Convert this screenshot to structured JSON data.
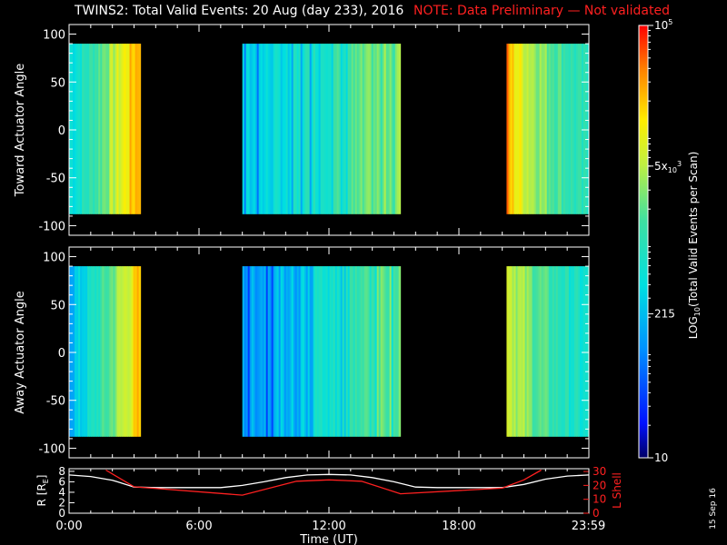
{
  "header": {
    "title": "TWINS2: Total Valid Events: 20 Aug (day 233), 2016",
    "note": "NOTE: Data Preliminary — Not validated"
  },
  "footer": {
    "date_stamp": "15 Sep 16"
  },
  "colors": {
    "background": "#000000",
    "axis": "#ffffff",
    "note": "#ff2020",
    "lshell": "#ff2020"
  },
  "chart_data": [
    {
      "type": "heatmap",
      "ylabel": "Toward Actuator Angle",
      "ylim": [
        -110,
        110
      ],
      "yticks": [
        100,
        50,
        0,
        -50,
        -100
      ],
      "xlim": [
        0,
        24
      ],
      "data_bands": [
        {
          "start_h": 0.0,
          "end_h": 3.3,
          "intensity_profile": "blue-green at start rising to orange at end"
        },
        {
          "start_h": 8.0,
          "end_h": 15.3,
          "intensity_profile": "blue/cyan streaks transitioning to yellow-green"
        },
        {
          "start_h": 20.2,
          "end_h": 24.0,
          "intensity_profile": "orange at start falling to cyan"
        }
      ],
      "angle_range": [
        -88,
        90
      ]
    },
    {
      "type": "heatmap",
      "ylabel": "Away Actuator Angle",
      "ylim": [
        -110,
        110
      ],
      "yticks": [
        100,
        50,
        0,
        -50,
        -100
      ],
      "xlim": [
        0,
        24
      ],
      "data_bands": [
        {
          "start_h": 0.0,
          "end_h": 3.3,
          "intensity_profile": "blue at start rising to yellow-orange at end"
        },
        {
          "start_h": 8.0,
          "end_h": 15.3,
          "intensity_profile": "blue/cyan streaks transitioning to yellow-green"
        },
        {
          "start_h": 20.2,
          "end_h": 24.0,
          "intensity_profile": "yellow-orange at start falling to cyan"
        }
      ],
      "angle_range": [
        -88,
        90
      ]
    },
    {
      "type": "line",
      "xlabel": "Time (UT)",
      "xticks": [
        "0:00",
        "6:00",
        "12:00",
        "18:00",
        "23:59"
      ],
      "xtick_hours": [
        0,
        6,
        12,
        18,
        23.98
      ],
      "ylabel_left": "R [Rₑ]",
      "ylabel_left_parts": {
        "main": "R [R",
        "sub": "E",
        "close": "]"
      },
      "ylim_left": [
        0,
        8.5
      ],
      "yticks_left": [
        "8",
        "6",
        "4",
        "2",
        "0"
      ],
      "ylabel_right": "L Shell",
      "ylim_right": [
        0,
        32
      ],
      "yticks_right": [
        "30",
        "20",
        "10",
        "0"
      ],
      "series": [
        {
          "color": "#ffffff",
          "x": [
            0,
            1,
            2,
            3,
            4,
            5,
            6,
            7,
            8,
            9,
            10,
            11,
            12,
            13,
            14,
            15,
            16,
            17,
            18,
            19,
            20,
            21,
            22,
            23,
            24
          ],
          "y": [
            7.3,
            7.0,
            6.3,
            5.0,
            4.9,
            4.9,
            4.9,
            4.9,
            5.3,
            6.0,
            6.8,
            7.3,
            7.4,
            7.3,
            6.8,
            6.0,
            5.0,
            4.9,
            4.9,
            4.9,
            4.9,
            5.5,
            6.5,
            7.1,
            7.3
          ]
        },
        {
          "color": "#ff2020",
          "axis": "right",
          "x": [
            1.7,
            3.0,
            8.0,
            10.5,
            12.0,
            13.5,
            15.3,
            20.0,
            21.0,
            21.8
          ],
          "y": [
            31,
            19,
            13,
            23,
            24,
            23,
            14,
            18,
            24,
            31
          ]
        }
      ]
    },
    {
      "type": "colorbar",
      "scale": "log",
      "range": [
        10,
        100000
      ],
      "label_main": "LOG",
      "label_sub": "10",
      "label_rest": "(Total Valid Events per Scan)",
      "tick_labels": [
        {
          "value": 100000,
          "base": "10",
          "sup": "5",
          "sub": "",
          "sup2": ""
        },
        {
          "value": 5000,
          "base": "5x",
          "sub": "10",
          "sup": "",
          "sup2": "3"
        },
        {
          "value": 215,
          "base": "215",
          "sub": "",
          "sup": "",
          "sup2": ""
        },
        {
          "value": 10,
          "base": "10",
          "sub": "",
          "sup": "",
          "sup2": ""
        }
      ]
    }
  ]
}
